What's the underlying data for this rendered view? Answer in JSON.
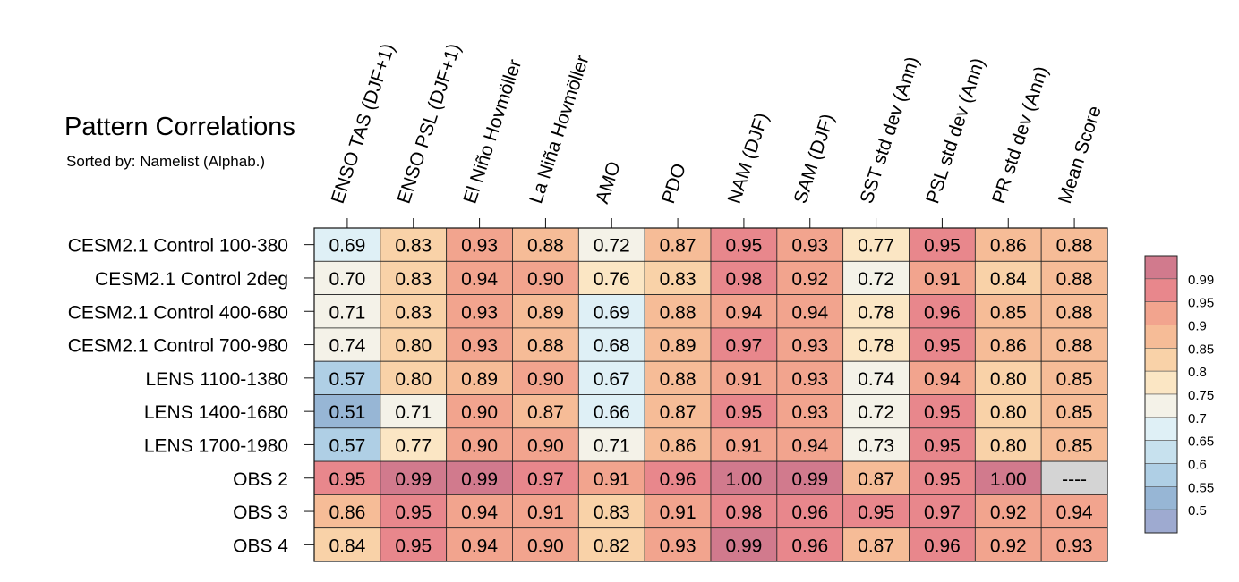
{
  "header": {
    "title": "Pattern Correlations",
    "subtitle": "Sorted by: Namelist (Alphab.)"
  },
  "chart_data": {
    "type": "heatmap",
    "title": "Pattern Correlations",
    "subtitle": "Sorted by: Namelist (Alphab.)",
    "columns": [
      "ENSO TAS (DJF+1)",
      "ENSO PSL (DJF+1)",
      "El Niño Hovmöller",
      "La Niña Hovmöller",
      "AMO",
      "PDO",
      "NAM (DJF)",
      "SAM (DJF)",
      "SST std dev (Ann)",
      "PSL std dev (Ann)",
      "PR std dev (Ann)",
      "Mean Score"
    ],
    "rows": [
      "CESM2.1 Control 100-380",
      "CESM2.1 Control 2deg",
      "CESM2.1 Control 400-680",
      "CESM2.1 Control 700-980",
      "LENS 1100-1380",
      "LENS 1400-1680",
      "LENS 1700-1980",
      "OBS 2",
      "OBS 3",
      "OBS 4"
    ],
    "values": [
      [
        0.69,
        0.83,
        0.93,
        0.88,
        0.72,
        0.87,
        0.95,
        0.93,
        0.77,
        0.95,
        0.86,
        0.88
      ],
      [
        0.7,
        0.83,
        0.94,
        0.9,
        0.76,
        0.83,
        0.98,
        0.92,
        0.72,
        0.91,
        0.84,
        0.88
      ],
      [
        0.71,
        0.83,
        0.93,
        0.89,
        0.69,
        0.88,
        0.94,
        0.94,
        0.78,
        0.96,
        0.85,
        0.88
      ],
      [
        0.74,
        0.8,
        0.93,
        0.88,
        0.68,
        0.89,
        0.97,
        0.93,
        0.78,
        0.95,
        0.86,
        0.88
      ],
      [
        0.57,
        0.8,
        0.89,
        0.9,
        0.67,
        0.88,
        0.91,
        0.93,
        0.74,
        0.94,
        0.8,
        0.85
      ],
      [
        0.51,
        0.71,
        0.9,
        0.87,
        0.66,
        0.87,
        0.95,
        0.93,
        0.72,
        0.95,
        0.8,
        0.85
      ],
      [
        0.57,
        0.77,
        0.9,
        0.9,
        0.71,
        0.86,
        0.91,
        0.94,
        0.73,
        0.95,
        0.8,
        0.85
      ],
      [
        0.95,
        0.99,
        0.99,
        0.97,
        0.91,
        0.96,
        1.0,
        0.99,
        0.87,
        0.95,
        1.0,
        null
      ],
      [
        0.86,
        0.95,
        0.94,
        0.91,
        0.83,
        0.91,
        0.98,
        0.96,
        0.95,
        0.97,
        0.92,
        0.94
      ],
      [
        0.84,
        0.95,
        0.94,
        0.9,
        0.82,
        0.93,
        0.99,
        0.96,
        0.87,
        0.96,
        0.92,
        0.93
      ]
    ],
    "missing_label": "----",
    "missing_color": "#d4d4d4",
    "decimals": 2,
    "colorbar": {
      "tick_labels": [
        "0.99",
        "0.95",
        "0.9",
        "0.85",
        "0.8",
        "0.75",
        "0.7",
        "0.65",
        "0.6",
        "0.55",
        "0.5"
      ],
      "bins": [
        {
          "min": 0.99,
          "color": "#d17a8d"
        },
        {
          "min": 0.95,
          "color": "#e8878c"
        },
        {
          "min": 0.9,
          "color": "#f2a48e"
        },
        {
          "min": 0.85,
          "color": "#f6bc97"
        },
        {
          "min": 0.8,
          "color": "#f9d2a8"
        },
        {
          "min": 0.75,
          "color": "#fbe6c4"
        },
        {
          "min": 0.7,
          "color": "#f4f2e8"
        },
        {
          "min": 0.65,
          "color": "#dff0f6"
        },
        {
          "min": 0.6,
          "color": "#c7e1ee"
        },
        {
          "min": 0.55,
          "color": "#afcfe5"
        },
        {
          "min": 0.5,
          "color": "#97b6d5"
        },
        {
          "min": -1.0,
          "color": "#9eaad0"
        }
      ]
    }
  }
}
